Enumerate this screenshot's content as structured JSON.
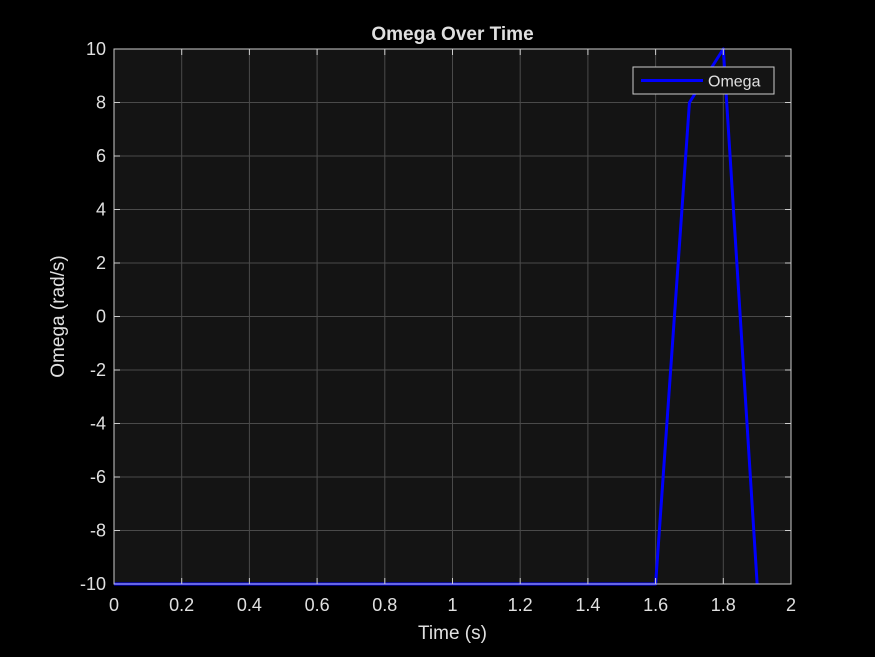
{
  "chart_data": {
    "type": "line",
    "title": "Omega Over Time",
    "xlabel": "Time (s)",
    "ylabel": "Omega (rad/s)",
    "xlim": [
      0,
      2
    ],
    "ylim": [
      -10,
      10
    ],
    "xticks": [
      0,
      0.2,
      0.4,
      0.6,
      0.8,
      1,
      1.2,
      1.4,
      1.6,
      1.8,
      2
    ],
    "xtick_labels": [
      "0",
      "0.2",
      "0.4",
      "0.6",
      "0.8",
      "1",
      "1.2",
      "1.4",
      "1.6",
      "1.8",
      "2"
    ],
    "yticks": [
      -10,
      -8,
      -6,
      -4,
      -2,
      0,
      2,
      4,
      6,
      8,
      10
    ],
    "ytick_labels": [
      "-10",
      "-8",
      "-6",
      "-4",
      "-2",
      "0",
      "2",
      "4",
      "6",
      "8",
      "10"
    ],
    "grid": true,
    "legend": {
      "position": "top-right"
    },
    "series": [
      {
        "name": "Omega",
        "color": "#0000ff",
        "x": [
          0,
          0.1,
          0.2,
          0.3,
          0.4,
          0.5,
          0.6,
          0.7,
          0.8,
          0.9,
          1.0,
          1.1,
          1.2,
          1.3,
          1.4,
          1.5,
          1.6,
          1.7,
          1.8,
          1.9
        ],
        "y": [
          -10,
          -10,
          -10,
          -10,
          -10,
          -10,
          -10,
          -10,
          -10,
          -10,
          -10,
          -10,
          -10,
          -10,
          -10,
          -10,
          -10,
          8,
          10,
          -10
        ]
      }
    ],
    "colors": {
      "figure_bg": "#000000",
      "axes_bg": "#141414",
      "grid": "#4a4a4a",
      "axis_line": "#cccccc",
      "text": "#e0e0e0"
    }
  }
}
